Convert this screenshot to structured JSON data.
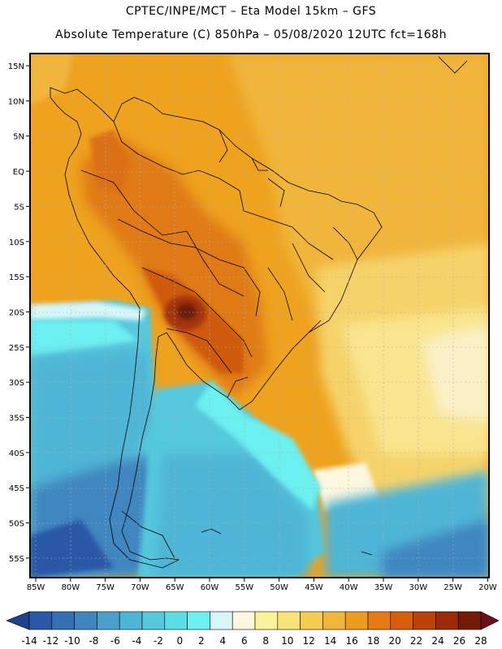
{
  "title_line1": "CPTEC/INPE/MCT –  Eta Model 15km – GFS",
  "title_line2": "Absolute Temperature (C) 850hPa – 05/08/2020 12UTC fct=168h",
  "lat_labels": [
    "15N",
    "10N",
    "5N",
    "EQ",
    "5S",
    "10S",
    "15S",
    "20S",
    "25S",
    "30S",
    "35S",
    "40S",
    "45S",
    "50S",
    "55S"
  ],
  "lon_labels": [
    "85W",
    "80W",
    "75W",
    "70W",
    "65W",
    "60W",
    "55W",
    "50W",
    "45W",
    "40W",
    "35W",
    "30W",
    "25W",
    "20W"
  ],
  "colorbar": {
    "labels": [
      "-14",
      "-12",
      "-10",
      "-8",
      "-6",
      "-4",
      "-2",
      "0",
      "2",
      "4",
      "6",
      "8",
      "10",
      "12",
      "14",
      "16",
      "18",
      "20",
      "22",
      "24",
      "26",
      "28"
    ],
    "colors": [
      "#1f3f8f",
      "#2a58a6",
      "#3370b3",
      "#3f86c0",
      "#4a9fcc",
      "#4fb5d6",
      "#55c8dd",
      "#5cdde6",
      "#6cf0f0",
      "#d6f6f8",
      "#fdf7df",
      "#fbf19a",
      "#f8e27a",
      "#f4cc52",
      "#f1b53a",
      "#ee9b22",
      "#e47b14",
      "#d55d0c",
      "#bd4009",
      "#9b2a07",
      "#741a06",
      "#6b0f1a"
    ]
  }
}
